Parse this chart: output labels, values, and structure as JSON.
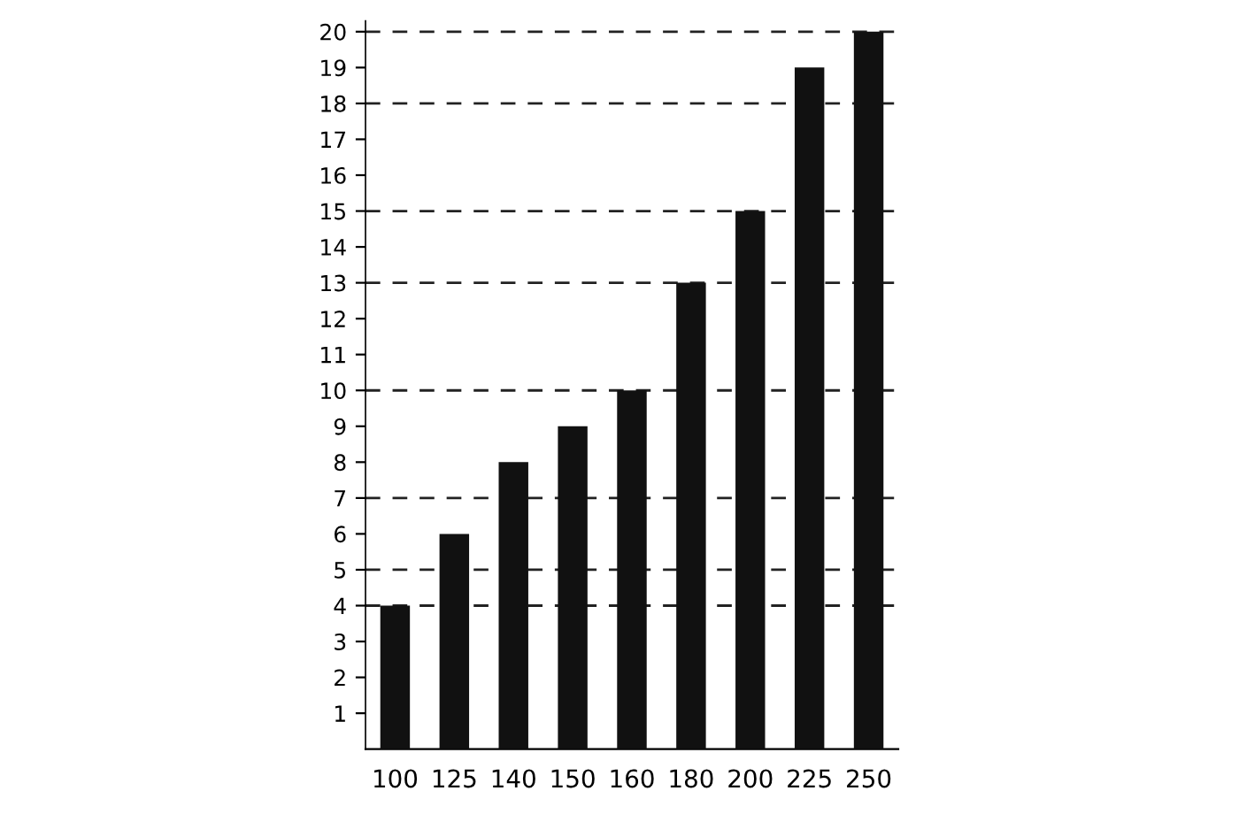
{
  "chart_data": {
    "type": "bar",
    "categories": [
      "100",
      "125",
      "140",
      "150",
      "160",
      "180",
      "200",
      "225",
      "250"
    ],
    "values": [
      4,
      6,
      8,
      9,
      10,
      13,
      15,
      19,
      20
    ],
    "color": "#111111",
    "ylim": [
      0,
      20.3
    ],
    "yticks": [
      1,
      2,
      3,
      4,
      5,
      6,
      7,
      8,
      9,
      10,
      11,
      12,
      13,
      14,
      15,
      16,
      17,
      18,
      19,
      20
    ],
    "grid": false,
    "legend": false,
    "ref_lines": [
      {
        "axis": "y",
        "value": 4,
        "line_style": "dashed",
        "color": "#222222"
      },
      {
        "axis": "y",
        "value": 5,
        "line_style": "dashed",
        "color": "#222222"
      },
      {
        "axis": "y",
        "value": 7,
        "line_style": "dashed",
        "color": "#222222"
      },
      {
        "axis": "y",
        "value": 10,
        "line_style": "dashed",
        "color": "#222222"
      },
      {
        "axis": "y",
        "value": 13,
        "line_style": "dashed",
        "color": "#222222"
      },
      {
        "axis": "y",
        "value": 15,
        "line_style": "dashed",
        "color": "#222222"
      },
      {
        "axis": "y",
        "value": 18,
        "line_style": "dashed",
        "color": "#222222"
      },
      {
        "axis": "y",
        "value": 20,
        "line_style": "dashed",
        "color": "#222222"
      }
    ]
  }
}
